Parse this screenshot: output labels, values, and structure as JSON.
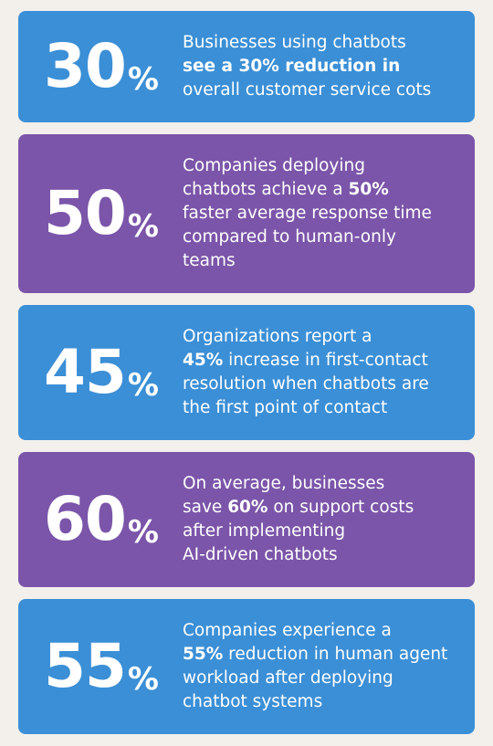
{
  "cards": [
    {
      "number": "30",
      "unit": "%",
      "color": "#3b8fd6",
      "lines": [
        [
          {
            "text": "Businesses using chatbots"
          }
        ],
        [
          {
            "text": "see a 30% reduction in",
            "bold": true
          }
        ],
        [
          {
            "text": "overall customer service cots"
          }
        ]
      ]
    },
    {
      "number": "50",
      "unit": "%",
      "color": "#7b55a9",
      "lines": [
        [
          {
            "text": "Companies deploying"
          }
        ],
        [
          {
            "text": "chatbots achieve a "
          },
          {
            "text": "50%",
            "bold": true
          }
        ],
        [
          {
            "text": "faster average response time"
          }
        ],
        [
          {
            "text": "compared to human-only"
          }
        ],
        [
          {
            "text": "teams"
          }
        ]
      ]
    },
    {
      "number": "45",
      "unit": "%",
      "color": "#3b8fd6",
      "lines": [
        [
          {
            "text": "Organizations report a"
          }
        ],
        [
          {
            "text": "45%",
            "bold": true
          },
          {
            "text": " increase in first-contact"
          }
        ],
        [
          {
            "text": "resolution when chatbots are"
          }
        ],
        [
          {
            "text": "the first point of contact"
          }
        ]
      ]
    },
    {
      "number": "60",
      "unit": "%",
      "color": "#7b55a9",
      "lines": [
        [
          {
            "text": "On average, businesses"
          }
        ],
        [
          {
            "text": "save "
          },
          {
            "text": "60%",
            "bold": true
          },
          {
            "text": " on support costs"
          }
        ],
        [
          {
            "text": "after implementing"
          }
        ],
        [
          {
            "text": "AI-driven chatbots"
          }
        ]
      ]
    },
    {
      "number": "55",
      "unit": "%",
      "color": "#3b8fd6",
      "lines": [
        [
          {
            "text": "Companies experience a"
          }
        ],
        [
          {
            "text": "55%",
            "bold": true
          },
          {
            "text": " reduction in human agent"
          }
        ],
        [
          {
            "text": "workload after deploying"
          }
        ],
        [
          {
            "text": "chatbot systems"
          }
        ]
      ]
    }
  ]
}
